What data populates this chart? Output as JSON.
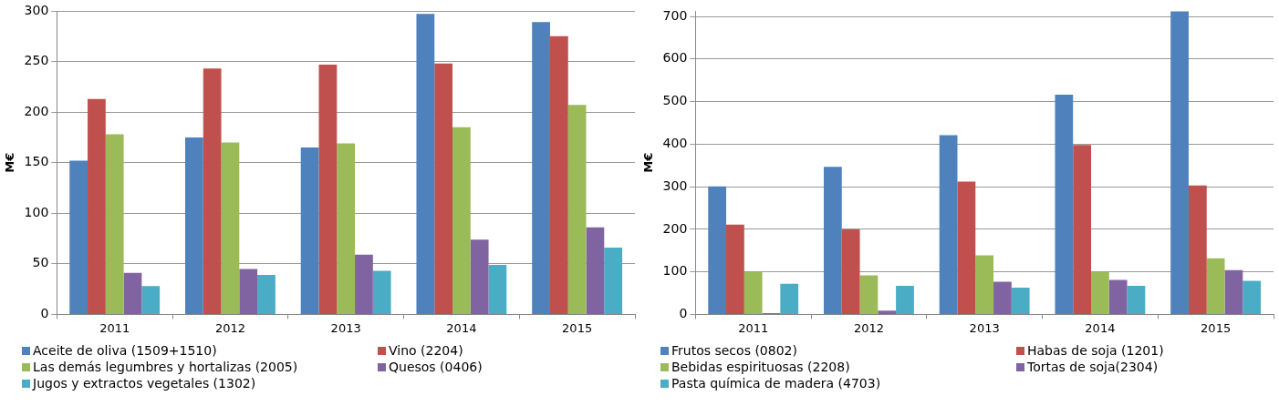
{
  "chart_data": [
    {
      "type": "bar",
      "ylabel": "M€",
      "categories": [
        "2011",
        "2012",
        "2013",
        "2014",
        "2015"
      ],
      "ylim": [
        0,
        300
      ],
      "yticks": [
        0,
        50,
        100,
        150,
        200,
        250,
        300
      ],
      "grid": "y",
      "legend": "bottom",
      "series": [
        {
          "name": "Aceite de oliva (1509+1510)",
          "color": "#4f81bd",
          "values": [
            152,
            175,
            165,
            297,
            289
          ]
        },
        {
          "name": "Vino (2204)",
          "color": "#c0504d",
          "values": [
            213,
            243,
            247,
            248,
            275
          ]
        },
        {
          "name": "Las demás legumbres y hortalizas (2005)",
          "color": "#9bbb59",
          "values": [
            178,
            170,
            169,
            185,
            207
          ]
        },
        {
          "name": "Quesos (0406)",
          "color": "#8064a2",
          "values": [
            41,
            45,
            59,
            74,
            86
          ]
        },
        {
          "name": "Jugos y extractos vegetales (1302)",
          "color": "#4bacc6",
          "values": [
            28,
            39,
            43,
            49,
            66
          ]
        }
      ]
    },
    {
      "type": "bar",
      "ylabel": "M€",
      "categories": [
        "2011",
        "2012",
        "2013",
        "2014",
        "2015"
      ],
      "ylim": [
        0,
        713
      ],
      "yticks": [
        0,
        100,
        200,
        300,
        400,
        500,
        600,
        700
      ],
      "grid": "y",
      "legend": "bottom",
      "series": [
        {
          "name": "Frutos secos (0802)",
          "color": "#4f81bd",
          "values": [
            301,
            347,
            421,
            516,
            712
          ]
        },
        {
          "name": "Habas de soja (1201)",
          "color": "#c0504d",
          "values": [
            211,
            200,
            312,
            398,
            303
          ]
        },
        {
          "name": "Bebidas espirituosas (2208)",
          "color": "#9bbb59",
          "values": [
            100,
            92,
            139,
            100,
            132
          ]
        },
        {
          "name": "Tortas de soja(2304)",
          "color": "#8064a2",
          "values": [
            3,
            9,
            77,
            81,
            104
          ]
        },
        {
          "name": "Pasta química de madera (4703)",
          "color": "#4bacc6",
          "values": [
            72,
            67,
            63,
            67,
            79
          ]
        }
      ]
    }
  ]
}
